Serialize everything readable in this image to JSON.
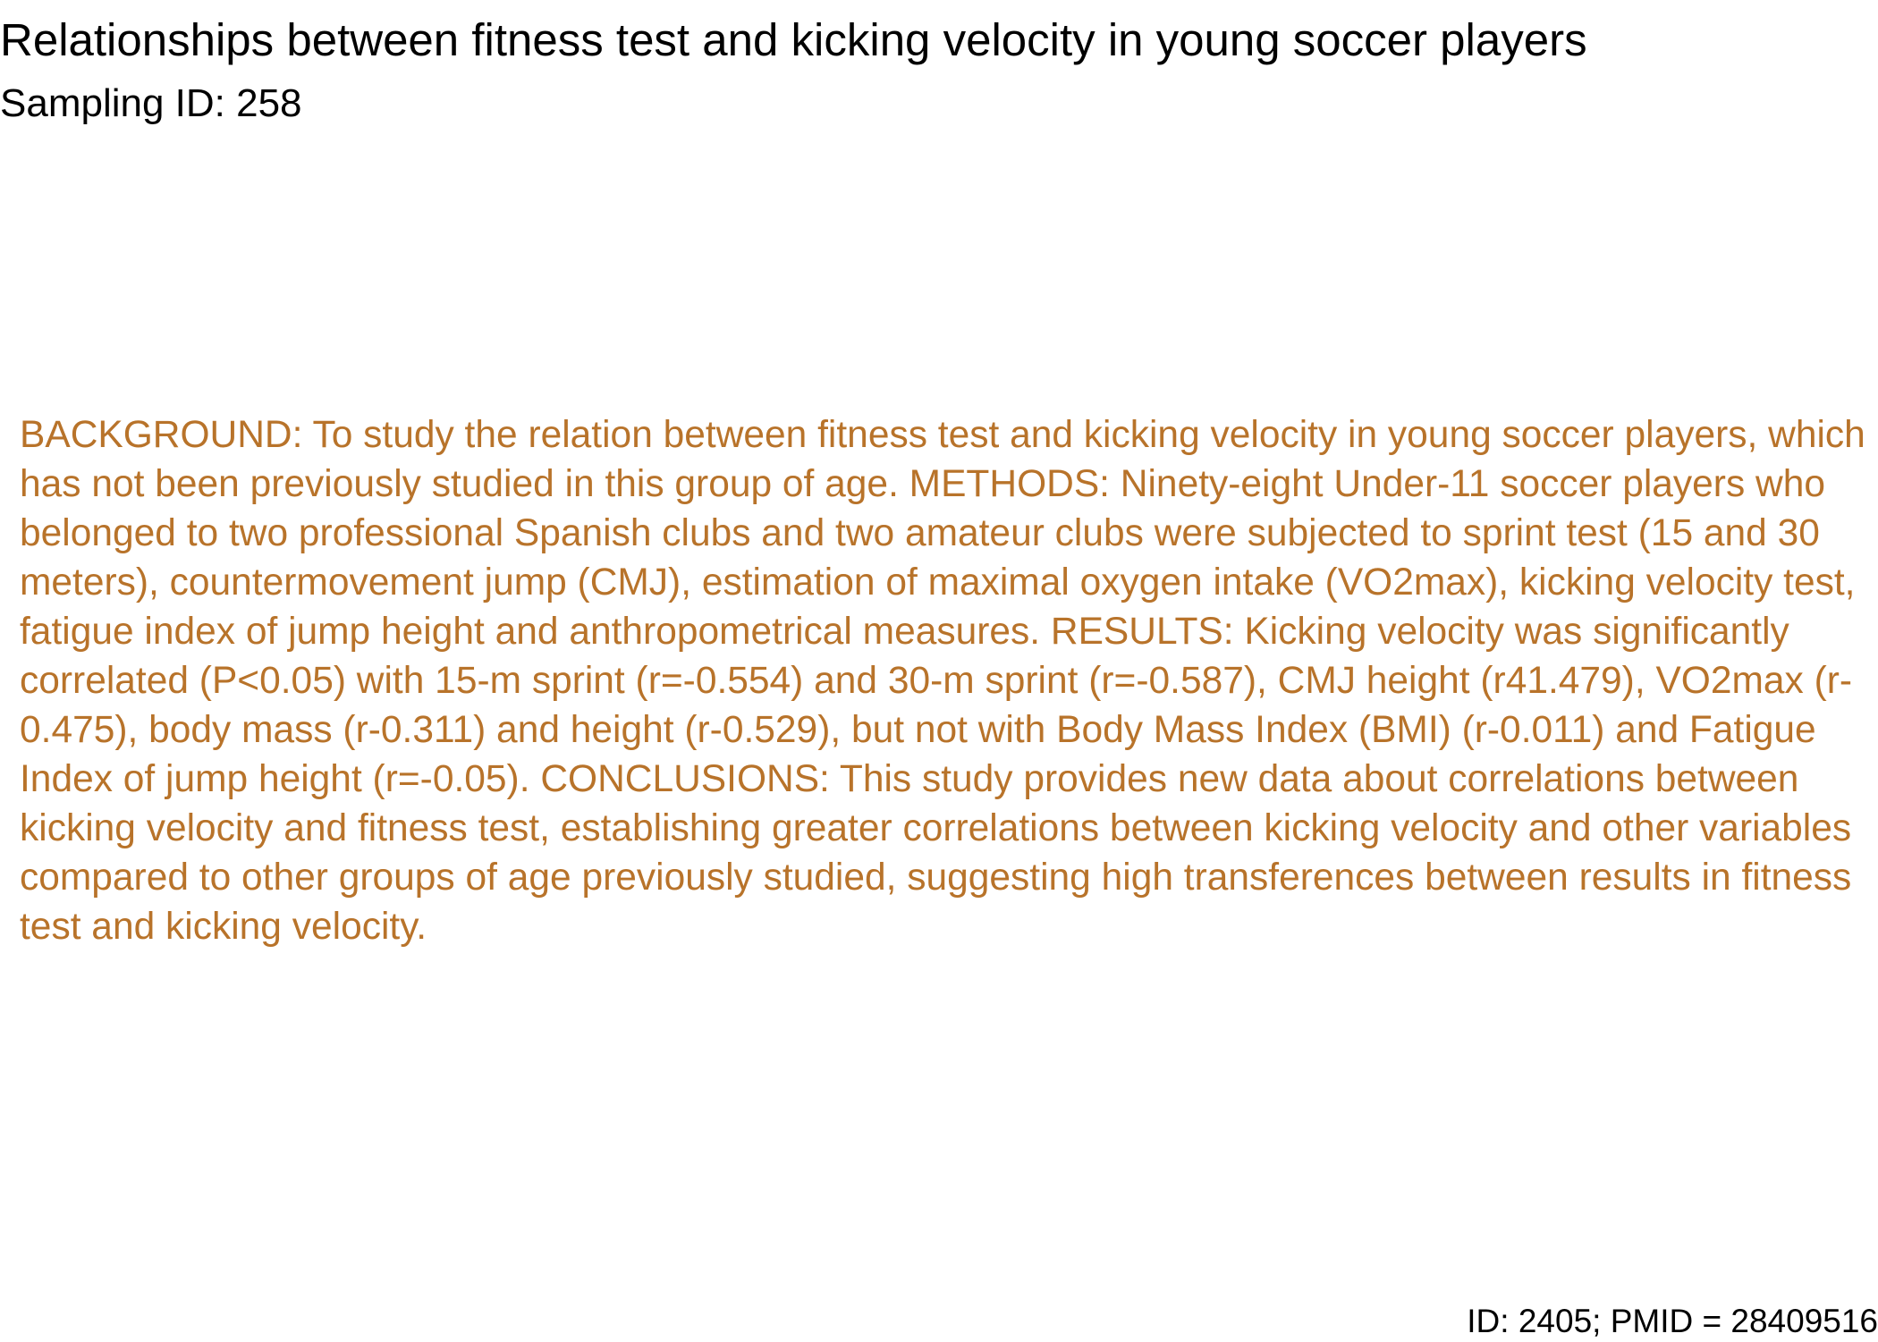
{
  "document": {
    "title": "Relationships between fitness test and kicking velocity in young soccer players",
    "sampling_id": "Sampling ID: 258",
    "abstract": "BACKGROUND: To study the relation between fitness test and kicking velocity in young soccer players, which has not been previously studied in this group of age. METHODS: Ninety-eight Under-11 soccer players who belonged to two professional Spanish clubs and two amateur clubs were subjected to sprint test (15 and 30 meters), countermovement jump (CMJ), estimation of maximal oxygen intake (VO2max), kicking velocity test, fatigue index of jump height and anthropometrical measures. RESULTS: Kicking velocity was significantly correlated (P<0.05) with 15-m sprint (r=-0.554) and 30-m sprint (r=-0.587), CMJ height (r41.479), VO2max (r-0.475), body mass (r-0.311) and height (r-0.529), but not with Body Mass Index (BMI) (r-0.011) and Fatigue Index of jump height (r=-0.05). CONCLUSIONS: This study provides new data about correlations between kicking velocity and fitness test, establishing greater correlations between kicking velocity and other variables compared to other groups of age previously studied, suggesting high transferences between results in fitness test and kicking velocity.",
    "footer_id": "ID: 2405; PMID = 28409516"
  },
  "colors": {
    "title_text": "#000000",
    "abstract_text": "#b8732a",
    "background": "#ffffff"
  }
}
